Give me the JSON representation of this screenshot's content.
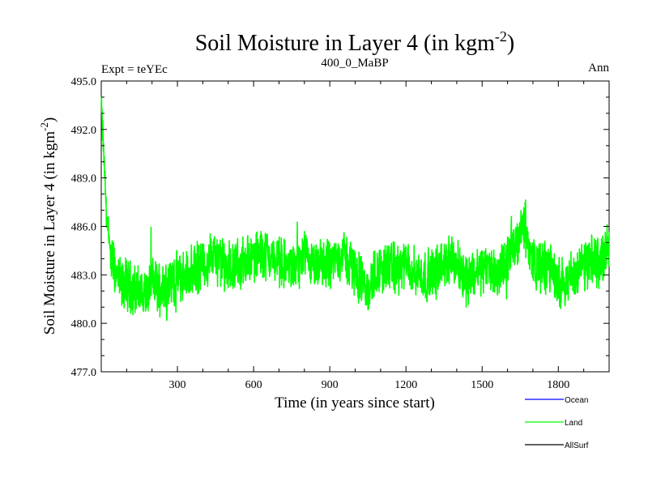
{
  "header": {
    "title": "Soil Moisture in Layer 4 (in kgm",
    "title_sup": "-2",
    "title_close": ")",
    "expt": "Expt = teYEc",
    "run": "400_0_MaBP",
    "period": "Ann"
  },
  "chart_data": {
    "type": "line",
    "title": "Soil Moisture in Layer 4 (in kgm-2)",
    "xlabel": "Time (in years since start)",
    "ylabel": "Soil Moisture in Layer 4 (in kgm-2)",
    "xlim": [
      0,
      2000
    ],
    "ylim": [
      477.0,
      495.0
    ],
    "x_ticks": [
      300,
      600,
      900,
      1200,
      1500,
      1800
    ],
    "x_tick_labels": [
      "300",
      "600",
      "900",
      "1200",
      "1500",
      "1800"
    ],
    "y_ticks": [
      477.0,
      480.0,
      483.0,
      486.0,
      489.0,
      492.0,
      495.0
    ],
    "y_tick_labels": [
      "477.0",
      "480.0",
      "483.0",
      "486.0",
      "489.0",
      "492.0",
      "495.0"
    ],
    "legend": [
      {
        "name": "Ocean",
        "color": "#0000ff"
      },
      {
        "name": "Land",
        "color": "#00ff00"
      },
      {
        "name": "AllSurf",
        "color": "#000000"
      }
    ],
    "series": [
      {
        "name": "Land",
        "color": "#00ff00",
        "x": [
          0,
          10,
          20,
          30,
          40,
          60,
          80,
          100,
          140,
          180,
          200,
          230,
          260,
          300,
          350,
          400,
          440,
          480,
          520,
          560,
          600,
          640,
          680,
          720,
          760,
          800,
          840,
          880,
          920,
          950,
          980,
          1020,
          1050,
          1080,
          1120,
          1160,
          1200,
          1240,
          1280,
          1320,
          1360,
          1400,
          1440,
          1480,
          1520,
          1560,
          1600,
          1640,
          1660,
          1680,
          1700,
          1720,
          1760,
          1800,
          1840,
          1880,
          1920,
          1960,
          2000
        ],
        "values": [
          493.5,
          490.5,
          487.0,
          485.0,
          484.0,
          483.0,
          482.3,
          482.5,
          482.0,
          481.8,
          482.6,
          482.2,
          482.6,
          482.8,
          483.1,
          483.6,
          484.2,
          483.6,
          483.4,
          483.8,
          484.1,
          484.4,
          484.0,
          483.6,
          483.4,
          484.0,
          483.3,
          483.7,
          483.9,
          484.4,
          483.6,
          482.8,
          481.8,
          483.2,
          483.5,
          483.3,
          483.6,
          483.1,
          482.9,
          483.2,
          483.9,
          483.7,
          482.7,
          483.3,
          483.5,
          483.0,
          483.8,
          485.2,
          486.5,
          484.9,
          483.9,
          483.4,
          483.6,
          482.4,
          482.8,
          483.3,
          483.7,
          483.9,
          484.6
        ]
      }
    ]
  }
}
